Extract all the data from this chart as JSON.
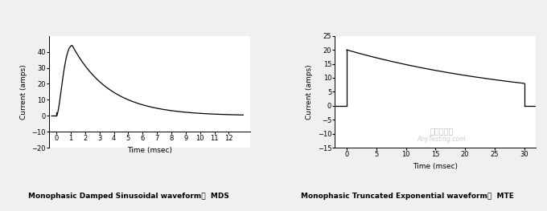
{
  "chart1": {
    "title": "Monophasic Damped Sinusoidal waveform，  MDS",
    "xlabel": "Time (msec)",
    "ylabel": "Current (amps)",
    "xlim": [
      -0.5,
      13.5
    ],
    "ylim": [
      -20,
      50
    ],
    "yticks": [
      -20,
      -10,
      0,
      10,
      20,
      30,
      40
    ],
    "xticks": [
      0,
      1,
      2,
      3,
      4,
      5,
      6,
      7,
      8,
      9,
      10,
      11,
      12
    ],
    "line_color": "#000000",
    "bg_color": "#ffffff",
    "spine_bottom_y": -10,
    "peak_y": 44,
    "peak_t": 1.1,
    "alpha": 0.38,
    "omega_period": 20.0
  },
  "chart2": {
    "title": "Monophasic Truncated Exponential waveform，  MTE",
    "xlabel": "Time (msec)",
    "ylabel": "Current (amps)",
    "xlim": [
      -2,
      32
    ],
    "ylim": [
      -15,
      25
    ],
    "yticks": [
      -15,
      -10,
      -5,
      0,
      5,
      10,
      15,
      20,
      25
    ],
    "xticks": [
      0,
      5,
      10,
      15,
      20,
      25,
      30
    ],
    "line_color": "#000000",
    "bg_color": "#ffffff",
    "start_val": 20,
    "end_val": 8,
    "duration": 30,
    "watermark1": "嘉峡检测网",
    "watermark2": "AnyTesting.com"
  },
  "fig_bg": "#f0f0f0",
  "label_fontsize": 6.5,
  "title_fontsize": 6.5,
  "tick_fontsize": 6
}
